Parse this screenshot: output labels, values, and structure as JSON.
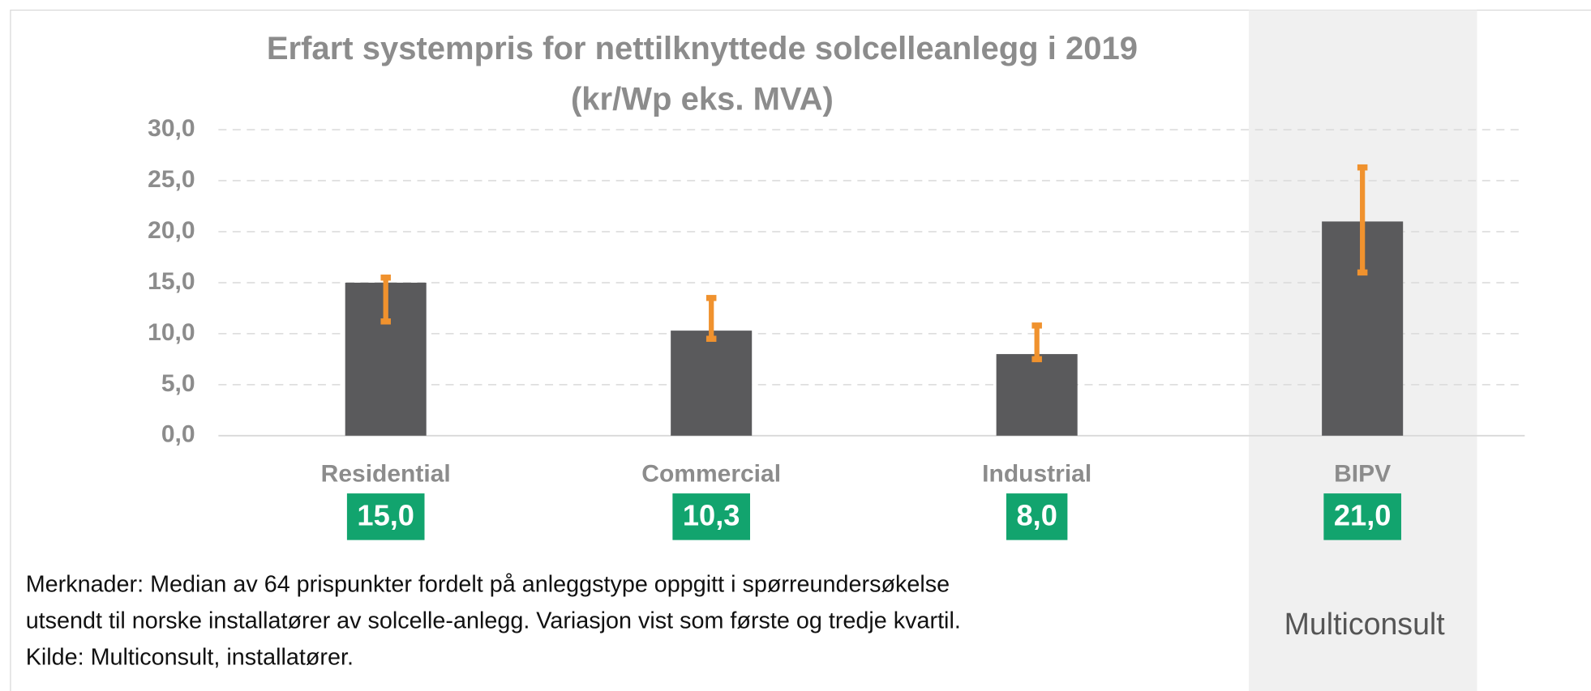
{
  "chart_data": {
    "type": "bar",
    "title": "Erfart systempris for nettilknyttede solcelleanlegg i 2019",
    "subtitle": "(kr/Wp eks. MVA)",
    "categories": [
      "Residential",
      "Commercial",
      "Industrial",
      "BIPV"
    ],
    "values": [
      15.0,
      10.3,
      8.0,
      21.0
    ],
    "value_labels": [
      "15,0",
      "10,3",
      "8,0",
      "21,0"
    ],
    "q1": [
      11.2,
      9.5,
      7.5,
      16.0
    ],
    "q3": [
      15.5,
      13.5,
      10.8,
      26.3
    ],
    "color": "#5a5a5c",
    "error_color": "#f0922e",
    "label_color": "#12a46e",
    "highlight_category": "BIPV",
    "ylim": [
      0,
      30
    ],
    "yticks": [
      {
        "value": 0,
        "label": "0,0"
      },
      {
        "value": 5,
        "label": "5,0"
      },
      {
        "value": 10,
        "label": "10,0"
      },
      {
        "value": 15,
        "label": "15,0"
      },
      {
        "value": 20,
        "label": "20,0"
      },
      {
        "value": 25,
        "label": "25,0"
      },
      {
        "value": 30,
        "label": "30,0"
      }
    ],
    "grid": true,
    "notes": [
      "Merknader: Median av 64 prispunkter fordelt på anleggstype oppgitt i spørreundersøkelse",
      "utsendt til norske installatører av solcelle-anlegg. Variasjon vist som første og tredje kvartil.",
      "Kilde: Multiconsult, installatører."
    ],
    "logo": "Multiconsult"
  }
}
